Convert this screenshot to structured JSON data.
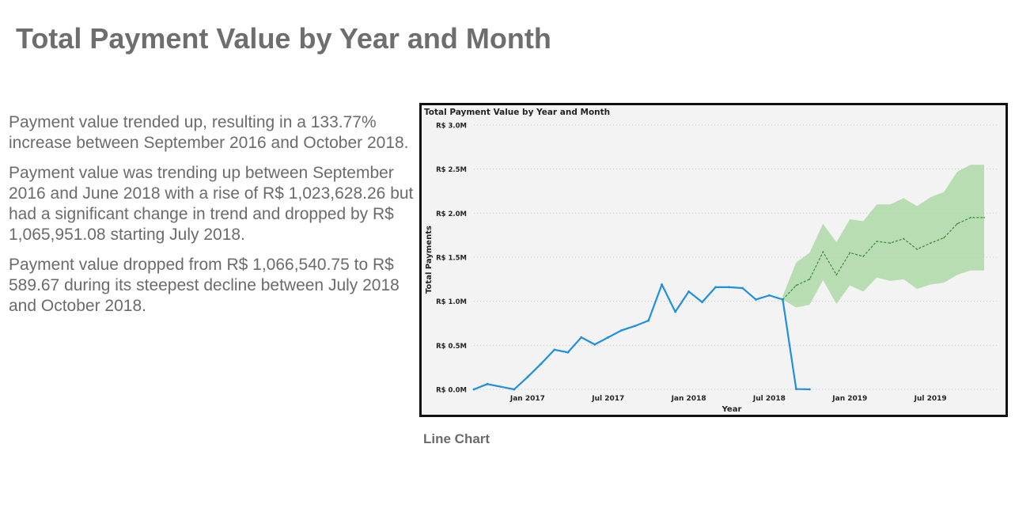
{
  "page": {
    "title": "Total Payment Value by Year and Month",
    "caption": "Line Chart"
  },
  "summary": {
    "paragraphs": [
      "Payment value trended up, resulting in a 133.77% increase between September 2016 and October 2018.",
      "Payment value was trending up between September 2016 and June 2018 with a rise of R$ 1,023,628.26 but had a significant change in trend and dropped by R$ 1,065,951.08 starting July 2018.",
      "Payment value dropped from R$ 1,066,540.75 to R$ 589.67 during its steepest decline between July 2018 and October 2018."
    ]
  },
  "chart_data": {
    "type": "line",
    "title": "Total Payment Value by Year and Month",
    "xlabel": "Year",
    "ylabel": "Total Payments",
    "ylim": [
      0,
      3000000
    ],
    "yticks": [
      0,
      500000,
      1000000,
      1500000,
      2000000,
      2500000,
      3000000
    ],
    "ytick_labels": [
      "R$ 0.0M",
      "R$ 0.5M",
      "R$ 1.0M",
      "R$ 1.5M",
      "R$ 2.0M",
      "R$ 2.5M",
      "R$ 3.0M"
    ],
    "xlim": [
      "2016-09",
      "2019-12"
    ],
    "xticks": [
      "2017-01",
      "2017-07",
      "2018-01",
      "2018-07",
      "2019-01",
      "2019-07"
    ],
    "xtick_labels": [
      "Jan 2017",
      "Jul 2017",
      "Jan 2018",
      "Jul 2018",
      "Jan 2019",
      "Jul 2019"
    ],
    "grid": "horizontal dotted",
    "colors": {
      "actual": "#1f8fe0",
      "forecast": "#3a8a3a",
      "band": "#a9d7a1",
      "background": "#f3f3f3"
    },
    "series": [
      {
        "role": "actual",
        "x": [
          "2016-09",
          "2016-10",
          "2016-12",
          "2017-01",
          "2017-02",
          "2017-03",
          "2017-04",
          "2017-05",
          "2017-06",
          "2017-07",
          "2017-08",
          "2017-09",
          "2017-10",
          "2017-11",
          "2017-12",
          "2018-01",
          "2018-02",
          "2018-03",
          "2018-04",
          "2018-05",
          "2018-06",
          "2018-07",
          "2018-08",
          "2018-09",
          "2018-10"
        ],
        "y": [
          250,
          60000,
          20,
          140000,
          290000,
          450000,
          420000,
          590000,
          510000,
          590000,
          670000,
          720000,
          780000,
          1190000,
          880000,
          1110000,
          990000,
          1160000,
          1160000,
          1150000,
          1020000,
          1066540.75,
          1020000,
          4000,
          589.67
        ]
      },
      {
        "role": "forecast",
        "x": [
          "2018-08",
          "2018-09",
          "2018-10",
          "2018-11",
          "2018-12",
          "2019-01",
          "2019-02",
          "2019-03",
          "2019-04",
          "2019-05",
          "2019-06",
          "2019-07",
          "2019-08",
          "2019-09",
          "2019-10",
          "2019-11"
        ],
        "y": [
          1020000,
          1180000,
          1250000,
          1560000,
          1300000,
          1550000,
          1510000,
          1680000,
          1660000,
          1710000,
          1590000,
          1660000,
          1720000,
          1880000,
          1950000,
          1950000
        ],
        "lower": [
          1020000,
          930000,
          960000,
          1240000,
          970000,
          1180000,
          1110000,
          1270000,
          1230000,
          1250000,
          1140000,
          1190000,
          1210000,
          1300000,
          1350000,
          1350000
        ],
        "upper": [
          1060000,
          1440000,
          1550000,
          1880000,
          1670000,
          1930000,
          1910000,
          2100000,
          2100000,
          2170000,
          2080000,
          2180000,
          2240000,
          2470000,
          2550000,
          2550000
        ]
      }
    ]
  }
}
